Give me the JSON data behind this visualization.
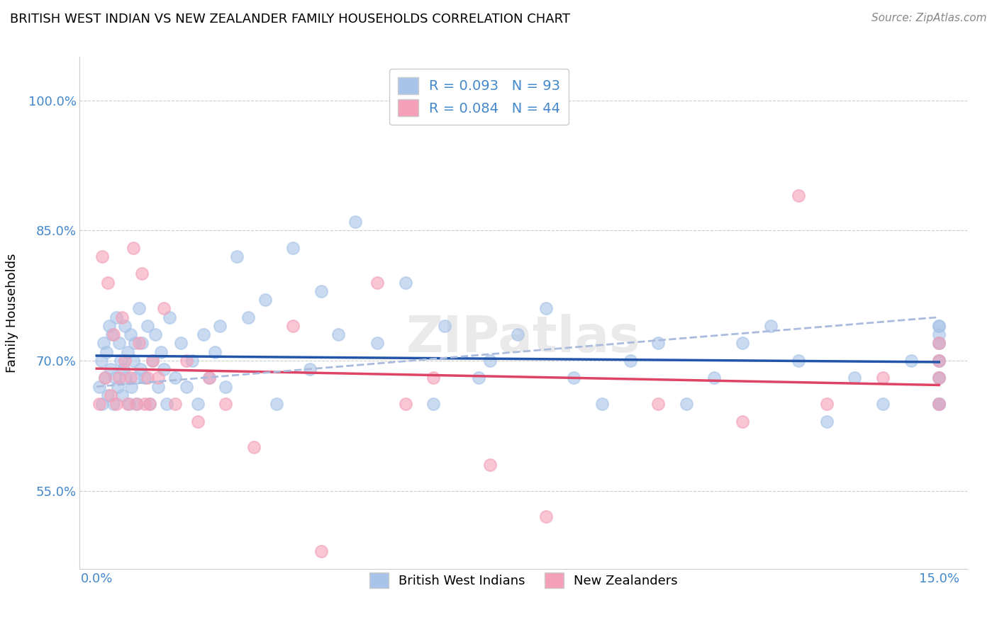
{
  "title": "BRITISH WEST INDIAN VS NEW ZEALANDER FAMILY HOUSEHOLDS CORRELATION CHART",
  "source": "Source: ZipAtlas.com",
  "ylabel": "Family Households",
  "ytick_vals": [
    55,
    70,
    85,
    100
  ],
  "ytick_labels": [
    "55.0%",
    "70.0%",
    "85.0%",
    "100.0%"
  ],
  "xlim": [
    -0.3,
    15.5
  ],
  "ylim": [
    46,
    105
  ],
  "blue_R": 0.093,
  "blue_N": 93,
  "pink_R": 0.084,
  "pink_N": 44,
  "blue_color": "#a8c4e8",
  "pink_color": "#f4a0b8",
  "blue_line_color": "#2255aa",
  "pink_line_color": "#dd4466",
  "blue_dash_color": "#a8c4e8",
  "legend_label_blue": "British West Indians",
  "legend_label_pink": "New Zealanders",
  "watermark": "ZIPatlas",
  "blue_x": [
    0.05,
    0.08,
    0.1,
    0.12,
    0.15,
    0.18,
    0.2,
    0.22,
    0.25,
    0.28,
    0.3,
    0.32,
    0.35,
    0.38,
    0.4,
    0.42,
    0.45,
    0.48,
    0.5,
    0.52,
    0.55,
    0.58,
    0.6,
    0.62,
    0.65,
    0.68,
    0.7,
    0.72,
    0.75,
    0.78,
    0.8,
    0.85,
    0.9,
    0.95,
    1.0,
    1.05,
    1.1,
    1.15,
    1.2,
    1.25,
    1.3,
    1.4,
    1.5,
    1.6,
    1.7,
    1.8,
    1.9,
    2.0,
    2.1,
    2.2,
    2.3,
    2.5,
    2.7,
    3.0,
    3.2,
    3.5,
    3.8,
    4.0,
    4.3,
    4.6,
    5.0,
    5.5,
    6.0,
    6.2,
    6.8,
    7.0,
    7.5,
    8.0,
    8.5,
    9.0,
    9.5,
    10.0,
    10.5,
    11.0,
    11.5,
    12.0,
    12.5,
    13.0,
    13.5,
    14.0,
    14.5,
    15.0,
    15.0,
    15.0,
    15.0,
    15.0,
    15.0,
    15.0,
    15.0,
    15.0,
    15.0,
    15.0,
    15.0
  ],
  "blue_y": [
    67,
    70,
    65,
    72,
    68,
    71,
    66,
    74,
    69,
    73,
    65,
    68,
    75,
    67,
    72,
    70,
    66,
    69,
    74,
    68,
    71,
    65,
    73,
    67,
    70,
    72,
    68,
    65,
    76,
    69,
    72,
    68,
    74,
    65,
    70,
    73,
    67,
    71,
    69,
    65,
    75,
    68,
    72,
    67,
    70,
    65,
    73,
    68,
    71,
    74,
    67,
    82,
    75,
    77,
    65,
    83,
    69,
    78,
    73,
    86,
    72,
    79,
    65,
    74,
    68,
    70,
    73,
    76,
    68,
    65,
    70,
    72,
    65,
    68,
    72,
    74,
    70,
    63,
    68,
    65,
    70,
    73,
    65,
    68,
    70,
    72,
    74,
    65,
    68,
    70,
    72,
    74,
    65
  ],
  "pink_x": [
    0.05,
    0.1,
    0.15,
    0.2,
    0.25,
    0.3,
    0.35,
    0.4,
    0.45,
    0.5,
    0.55,
    0.6,
    0.65,
    0.7,
    0.75,
    0.8,
    0.85,
    0.9,
    0.95,
    1.0,
    1.1,
    1.2,
    1.4,
    1.6,
    1.8,
    2.0,
    2.3,
    2.8,
    3.5,
    4.0,
    5.0,
    5.5,
    6.0,
    7.0,
    8.0,
    10.0,
    11.5,
    12.5,
    13.0,
    14.0,
    15.0,
    15.0,
    15.0,
    15.0
  ],
  "pink_y": [
    65,
    82,
    68,
    79,
    66,
    73,
    65,
    68,
    75,
    70,
    65,
    68,
    83,
    65,
    72,
    80,
    65,
    68,
    65,
    70,
    68,
    76,
    65,
    70,
    63,
    68,
    65,
    60,
    74,
    48,
    79,
    65,
    68,
    58,
    52,
    65,
    63,
    89,
    65,
    68,
    65,
    68,
    70,
    72
  ]
}
